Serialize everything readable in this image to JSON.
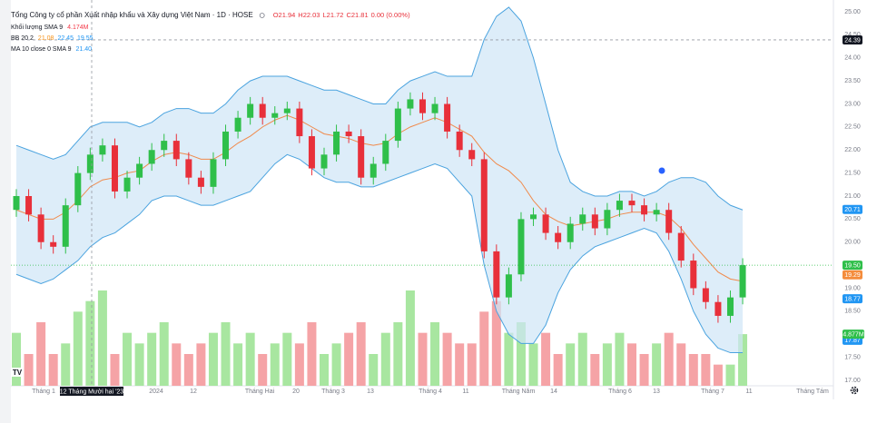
{
  "chart_data": {
    "type": "candlestick",
    "title": "Tổng Công ty cổ phần Xuất nhập khẩu và Xây dựng Việt Nam · 1D · HOSE",
    "ohlc_texts": [
      "O21.94",
      "H22.03",
      "L21.72",
      "C21.81",
      "0.00 (0.00%)"
    ],
    "legend": [
      {
        "name": "Khối lượng SMA 9",
        "values": [
          "4.174M"
        ],
        "colors": [
          "#f23645"
        ]
      },
      {
        "name": "BB 20 2",
        "values": [
          "21.08",
          "22.45",
          "19.55"
        ],
        "colors": [
          "#f7931a",
          "#2196f3",
          "#2196f3"
        ]
      },
      {
        "name": "MA 10 close 0 SMA 9",
        "values": [
          "21.40"
        ],
        "colors": [
          "#2196f3"
        ]
      }
    ],
    "up_color": "#2fbf4a",
    "down_color": "#e8303a",
    "volume_up_color": "#a8e6a0",
    "volume_down_color": "#f5a3a6",
    "band_color": "#4aa3df",
    "band_fill": "#cfe6f6",
    "ma_color": "#f08a4b",
    "grid": false,
    "ylim": [
      17,
      25
    ],
    "yticks": [
      {
        "value": 17,
        "label": "17.00"
      },
      {
        "value": 17.5,
        "label": "17.50"
      },
      {
        "value": 18,
        "label": "18.00"
      },
      {
        "value": 18.5,
        "label": "18.50"
      },
      {
        "value": 19,
        "label": "19.00"
      },
      {
        "value": 19.5,
        "label": "19.50"
      },
      {
        "value": 20,
        "label": "20.00"
      },
      {
        "value": 20.5,
        "label": "20.50"
      },
      {
        "value": 21,
        "label": "21.00"
      },
      {
        "value": 21.5,
        "label": "21.50"
      },
      {
        "value": 22,
        "label": "22.00"
      },
      {
        "value": 22.5,
        "label": "22.50"
      },
      {
        "value": 23,
        "label": "23.00"
      },
      {
        "value": 23.5,
        "label": "23.50"
      },
      {
        "value": 24,
        "label": "24.00"
      },
      {
        "value": 24.5,
        "label": "24.50"
      },
      {
        "value": 25,
        "label": "25.00"
      }
    ],
    "time_labels": [
      "Tháng 1",
      "2024",
      "12",
      "Tháng Hai",
      "20",
      "Tháng 3",
      "13",
      "Tháng 4",
      "11",
      "Tháng Năm",
      "14",
      "Tháng 6",
      "13",
      "Tháng 7",
      "11",
      "Tháng Tám"
    ],
    "crosshair": {
      "value": 24.39,
      "label": "24.39",
      "date": "12 Tháng Mười hai '23"
    },
    "price_labels": [
      {
        "value": 20.71,
        "label": "20.71",
        "color": "#2196f3"
      },
      {
        "value": 19.5,
        "label": "19.50",
        "color": "#2fbf4a"
      },
      {
        "value": 19.29,
        "label": "19.29",
        "color": "#f48c3c"
      },
      {
        "value": 18.77,
        "label": "18.77",
        "color": "#2196f3"
      },
      {
        "value": 17.87,
        "label": "17.87",
        "color": "#2196f3"
      }
    ],
    "volume_label": {
      "value": 4.877,
      "label": "4.877M",
      "color": "#2fbf4a"
    },
    "open": [
      20.7,
      21.0,
      20.6,
      20.0,
      19.9,
      20.8,
      21.5,
      21.9,
      22.1,
      21.1,
      21.4,
      21.7,
      22.0,
      22.2,
      21.8,
      21.4,
      21.2,
      21.8,
      22.4,
      22.7,
      23.0,
      22.7,
      22.8,
      22.9,
      22.3,
      21.6,
      21.9,
      22.4,
      22.3,
      21.4,
      21.7,
      22.2,
      22.9,
      23.1,
      22.8,
      23.0,
      22.4,
      22.0,
      21.8,
      19.8,
      18.8,
      19.3,
      20.5,
      20.6,
      20.2,
      20.0,
      20.4,
      20.6,
      20.3,
      20.7,
      20.9,
      20.8,
      20.6,
      20.7,
      20.2,
      19.6,
      19.0,
      18.7,
      18.4,
      18.8
    ],
    "high": [
      21.15,
      21.15,
      20.75,
      20.15,
      20.95,
      21.65,
      22.05,
      22.25,
      22.25,
      21.55,
      21.85,
      22.15,
      22.35,
      22.35,
      21.95,
      21.55,
      21.95,
      22.55,
      22.85,
      23.15,
      23.15,
      22.95,
      23.05,
      23.05,
      22.45,
      22.05,
      22.55,
      22.55,
      22.45,
      21.85,
      22.35,
      23.05,
      23.25,
      23.25,
      23.15,
      23.15,
      22.55,
      22.15,
      21.95,
      19.95,
      19.45,
      20.65,
      20.75,
      20.75,
      20.35,
      20.55,
      20.75,
      20.75,
      20.85,
      21.05,
      21.05,
      20.95,
      20.85,
      20.85,
      20.35,
      19.75,
      19.15,
      18.85,
      18.95,
      19.65
    ],
    "low": [
      20.55,
      20.45,
      19.85,
      19.75,
      19.75,
      20.65,
      21.35,
      21.75,
      20.95,
      20.95,
      21.25,
      21.55,
      21.85,
      21.65,
      21.25,
      21.05,
      21.05,
      21.65,
      22.25,
      22.55,
      22.55,
      22.55,
      22.65,
      22.15,
      21.45,
      21.45,
      21.75,
      22.15,
      21.25,
      21.25,
      21.55,
      22.05,
      22.75,
      22.65,
      22.65,
      22.25,
      21.85,
      21.65,
      19.65,
      18.65,
      18.65,
      19.15,
      20.35,
      20.05,
      19.85,
      19.85,
      20.25,
      20.15,
      20.15,
      20.55,
      20.65,
      20.45,
      20.45,
      20.05,
      19.45,
      18.85,
      18.55,
      18.25,
      18.25,
      18.65
    ],
    "close": [
      21.0,
      20.6,
      20.0,
      19.9,
      20.8,
      21.5,
      21.9,
      22.1,
      21.1,
      21.4,
      21.7,
      22.0,
      22.2,
      21.8,
      21.4,
      21.2,
      21.8,
      22.4,
      22.7,
      23.0,
      22.7,
      22.8,
      22.9,
      22.3,
      21.6,
      21.9,
      22.4,
      22.3,
      21.4,
      21.7,
      22.2,
      22.9,
      23.1,
      22.8,
      23.0,
      22.4,
      22.0,
      21.8,
      19.8,
      18.8,
      19.3,
      20.5,
      20.6,
      20.2,
      20.0,
      20.4,
      20.6,
      20.3,
      20.7,
      20.9,
      20.8,
      20.6,
      20.7,
      20.2,
      19.6,
      19.0,
      18.7,
      18.4,
      18.8,
      19.5
    ],
    "volume": [
      5,
      3,
      6,
      3,
      4,
      7,
      8,
      9,
      3,
      5,
      4,
      5,
      6,
      4,
      3,
      4,
      5,
      6,
      4,
      5,
      3,
      4,
      5,
      4,
      6,
      3,
      4,
      5,
      6,
      3,
      5,
      6,
      9,
      5,
      6,
      5,
      4,
      4,
      7,
      8,
      5,
      6,
      4,
      5,
      3,
      4,
      5,
      3,
      4,
      5,
      4,
      3,
      4,
      5,
      4,
      3,
      3,
      2,
      2,
      4.877
    ],
    "bb_upper": [
      22.1,
      22.0,
      21.9,
      21.8,
      21.9,
      22.2,
      22.5,
      22.6,
      22.6,
      22.6,
      22.5,
      22.6,
      22.8,
      22.9,
      22.9,
      22.8,
      22.8,
      23.0,
      23.3,
      23.5,
      23.6,
      23.6,
      23.6,
      23.5,
      23.4,
      23.3,
      23.3,
      23.2,
      23.1,
      23.0,
      23.0,
      23.3,
      23.5,
      23.6,
      23.7,
      23.6,
      23.6,
      23.6,
      24.4,
      24.9,
      25.1,
      24.8,
      24.0,
      23.0,
      22.0,
      21.3,
      21.1,
      21.0,
      21.0,
      21.1,
      21.1,
      21.0,
      21.1,
      21.3,
      21.4,
      21.4,
      21.3,
      21.0,
      20.8,
      20.7
    ],
    "bb_lower": [
      19.3,
      19.2,
      19.1,
      19.2,
      19.4,
      19.6,
      19.9,
      20.1,
      20.2,
      20.4,
      20.6,
      20.9,
      21.0,
      21.0,
      20.9,
      20.8,
      20.8,
      20.9,
      21.0,
      21.1,
      21.4,
      21.7,
      21.9,
      21.8,
      21.6,
      21.4,
      21.3,
      21.3,
      21.2,
      21.2,
      21.3,
      21.4,
      21.5,
      21.6,
      21.7,
      21.6,
      21.3,
      21.0,
      19.5,
      18.5,
      18.0,
      17.8,
      17.8,
      18.2,
      18.9,
      19.4,
      19.7,
      19.9,
      20.0,
      20.1,
      20.2,
      20.3,
      20.2,
      19.8,
      19.2,
      18.5,
      18.0,
      17.7,
      17.6,
      17.6
    ],
    "ma": [
      20.7,
      20.6,
      20.5,
      20.5,
      20.65,
      20.9,
      21.2,
      21.35,
      21.4,
      21.5,
      21.55,
      21.75,
      21.9,
      21.95,
      21.9,
      21.8,
      21.8,
      21.95,
      22.15,
      22.3,
      22.5,
      22.65,
      22.75,
      22.65,
      22.5,
      22.35,
      22.3,
      22.25,
      22.15,
      22.1,
      22.15,
      22.35,
      22.5,
      22.6,
      22.7,
      22.6,
      22.45,
      22.3,
      21.95,
      21.7,
      21.55,
      21.3,
      20.9,
      20.6,
      20.45,
      20.35,
      20.4,
      20.45,
      20.5,
      20.6,
      20.65,
      20.65,
      20.65,
      20.55,
      20.3,
      19.95,
      19.65,
      19.35,
      19.2,
      19.15
    ]
  }
}
